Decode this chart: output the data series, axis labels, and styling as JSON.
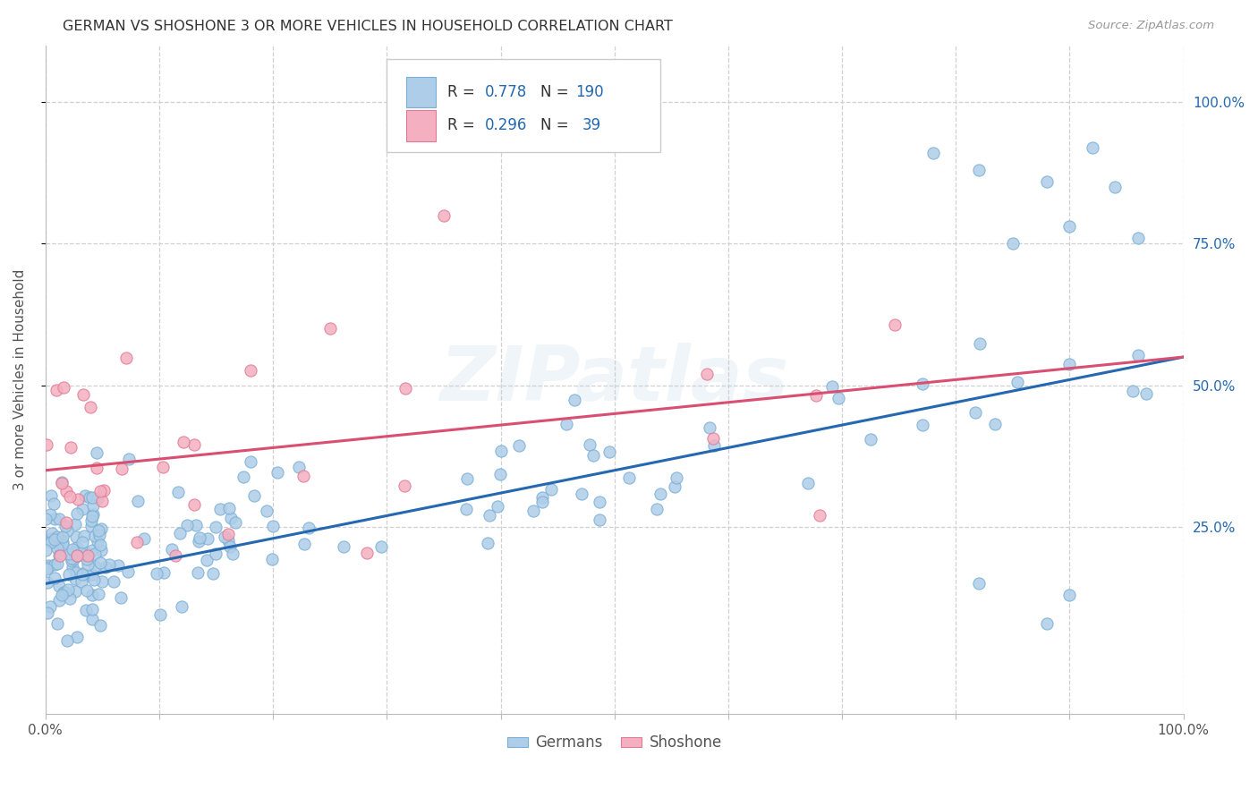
{
  "title": "GERMAN VS SHOSHONE 3 OR MORE VEHICLES IN HOUSEHOLD CORRELATION CHART",
  "source": "Source: ZipAtlas.com",
  "ylabel": "3 or more Vehicles in Household",
  "watermark": "ZIPatlas",
  "blue_R": 0.778,
  "blue_N": 190,
  "pink_R": 0.296,
  "pink_N": 39,
  "blue_scatter_color": "#aecde8",
  "blue_edge_color": "#7aafd4",
  "pink_scatter_color": "#f4afc0",
  "pink_edge_color": "#e07a96",
  "blue_line_color": "#2468b0",
  "pink_line_color": "#d94f72",
  "blue_text_color": "#2468b0",
  "title_color": "#333333",
  "source_color": "#999999",
  "grid_color": "#d0d0d0",
  "bg_color": "#ffffff",
  "xlim": [
    0,
    100
  ],
  "ylim": [
    -8,
    110
  ],
  "xtick_minor_vals": [
    10,
    20,
    30,
    40,
    50,
    60,
    70,
    80,
    90
  ],
  "xtick_major_vals": [
    0,
    100
  ],
  "xtick_major_labels": [
    "0.0%",
    "100.0%"
  ],
  "ytick_vals": [
    25,
    50,
    75,
    100
  ],
  "ytick_labels": [
    "25.0%",
    "50.0%",
    "75.0%",
    "100.0%"
  ],
  "legend_labels": [
    "Germans",
    "Shoshone"
  ],
  "figsize": [
    14.06,
    8.92
  ],
  "dpi": 100
}
